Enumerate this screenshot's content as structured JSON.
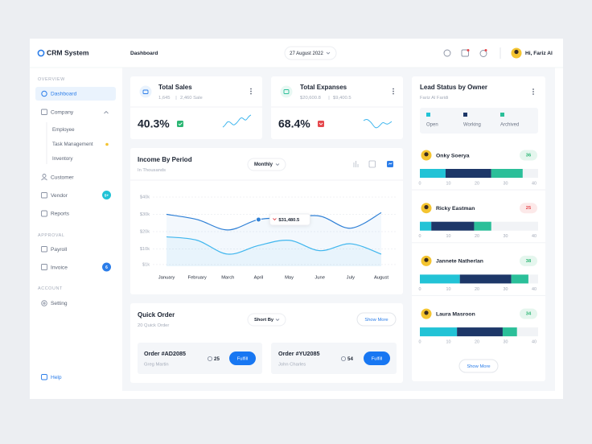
{
  "header": {
    "logo": "CRM System",
    "page": "Dashboard",
    "date": "27 August 2022",
    "greeting": "Hi, Fariz Al"
  },
  "sidebar": {
    "sections": [
      {
        "title": "OVERVIEW",
        "items": [
          {
            "label": "Dashboard"
          },
          {
            "label": "Company",
            "children": [
              "Employee",
              "Task Management",
              "Inventory"
            ]
          },
          {
            "label": "Customer"
          },
          {
            "label": "Vendor",
            "badge": "5+"
          },
          {
            "label": "Reports"
          }
        ]
      },
      {
        "title": "APPROVAL",
        "items": [
          {
            "label": "Payroll"
          },
          {
            "label": "Invoice",
            "badge": "6"
          }
        ]
      },
      {
        "title": "ACCOUNT",
        "items": [
          {
            "label": "Setting"
          }
        ]
      }
    ],
    "help": "Help"
  },
  "stats": [
    {
      "title": "Total Sales",
      "detail_left": "1,645",
      "detail_right": "2,460 Sale",
      "value": "40.3%"
    },
    {
      "title": "Total Expanses",
      "detail_left": "$20,600.8",
      "detail_right": "$9,400.5",
      "value": "68.4%"
    }
  ],
  "quick_order": {
    "title": "Quick Order",
    "subtitle": "20 Quick Order",
    "sort": "Short By",
    "more": "Show More",
    "orders": [
      {
        "id": "Order #AD2085",
        "customer": "Greg Martin",
        "count": "25",
        "action": "Fulfill"
      },
      {
        "id": "Order #YU2085",
        "customer": "John Charles",
        "count": "54",
        "action": "Fulfill"
      }
    ]
  },
  "lead_more": "Show More",
  "chart_data": [
    {
      "type": "line",
      "title": "Income By Period",
      "subtitle": "In Thousands",
      "filter": "Monthly",
      "annotation": "$31,480.5",
      "categories": [
        "January",
        "February",
        "March",
        "April",
        "May",
        "June",
        "July",
        "August"
      ],
      "series": [
        {
          "color": "#2f80d6",
          "values": [
            30,
            27,
            21,
            27,
            28,
            29,
            22,
            31
          ]
        },
        {
          "color": "#3fb6ee",
          "values": [
            17,
            15,
            7,
            12,
            15,
            9,
            13,
            7
          ]
        }
      ],
      "ylim": [
        0,
        40
      ],
      "yticks": [
        {
          "value": 40,
          "label": "$40k"
        },
        {
          "value": 30,
          "label": "$30k"
        },
        {
          "value": 20,
          "label": "$20k"
        },
        {
          "value": 10,
          "label": "$10k"
        },
        {
          "value": 1,
          "label": "$1k"
        }
      ],
      "grid": true
    },
    {
      "type": "bar",
      "orientation": "horizontal",
      "stacked": true,
      "title": "Lead Status by Owner",
      "subtitle": "Fariz Al Faridi",
      "categories": [
        "Onky Soerya",
        "Ricky Eastman",
        "Jannete Natherlan",
        "Laura Masroon"
      ],
      "totals": [
        36,
        25,
        38,
        34
      ],
      "total_colors": [
        "#2bb673",
        "#e5484d",
        "#2bb673",
        "#2bb673"
      ],
      "series": [
        {
          "name": "Open",
          "color": "#22c3d6",
          "values": [
            9,
            4,
            14,
            13
          ]
        },
        {
          "name": "Working",
          "color": "#1d3768",
          "values": [
            16,
            15,
            18,
            16
          ]
        },
        {
          "name": "Archived",
          "color": "#2bbf99",
          "values": [
            11,
            6,
            6,
            5
          ]
        }
      ],
      "xlim": [
        0,
        40
      ],
      "xticks": [
        0,
        10,
        20,
        30,
        40
      ]
    }
  ]
}
